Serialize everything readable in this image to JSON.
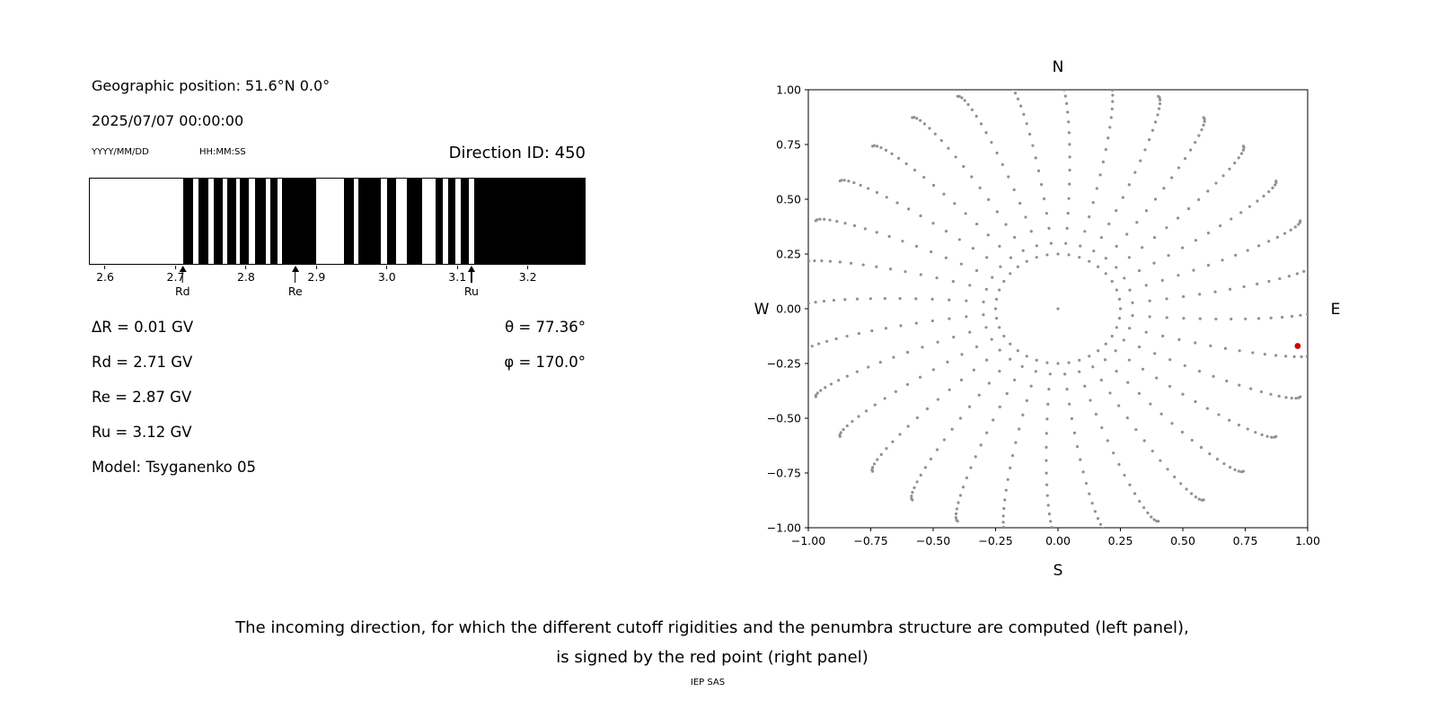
{
  "page": {
    "background": "#ffffff"
  },
  "left_panel": {
    "geographic_position": "Geographic position: 51.6°N 0.0°",
    "datetime": "2025/07/07 00:00:00",
    "date_format_hint": "YYYY/MM/DD",
    "time_format_hint": "HH:MM:SS",
    "direction_id": "Direction ID: 450",
    "values": [
      "ΔR = 0.01 GV",
      "Rd = 2.71 GV",
      "Re = 2.87 GV",
      "Ru = 3.12 GV",
      "Model: Tsyganenko 05"
    ],
    "angles": [
      "θ = 77.36°",
      "φ = 170.0°"
    ]
  },
  "caption": {
    "line1": "The incoming direction, for which the different cutoff rigidities and the penumbra structure are computed (left panel),",
    "line2": "is signed by the red point (right panel)",
    "credit": "IEP SAS"
  },
  "chart_data": [
    {
      "type": "bar",
      "name": "penumbra-structure",
      "title": "",
      "xlabel": "",
      "xlim": [
        2.577,
        3.282
      ],
      "xticks": [
        2.6,
        2.7,
        2.8,
        2.9,
        3.0,
        3.1,
        3.2
      ],
      "xtick_labels": [
        "2.6",
        "2.7",
        "2.8",
        "2.9",
        "3.0",
        "3.1",
        "3.2"
      ],
      "bar_color": "#000000",
      "black_bands_gv": [
        [
          2.71,
          2.724
        ],
        [
          2.732,
          2.746
        ],
        [
          2.753,
          2.766
        ],
        [
          2.773,
          2.785
        ],
        [
          2.791,
          2.804
        ],
        [
          2.813,
          2.828
        ],
        [
          2.834,
          2.845
        ],
        [
          2.851,
          2.899
        ],
        [
          2.939,
          2.953
        ],
        [
          2.959,
          2.991
        ],
        [
          3.0,
          3.013
        ],
        [
          3.029,
          3.051
        ],
        [
          3.07,
          3.08
        ],
        [
          3.087,
          3.098
        ],
        [
          3.106,
          3.117
        ],
        [
          3.124,
          3.282
        ]
      ],
      "markers": [
        {
          "label": "Rd",
          "x": 2.71
        },
        {
          "label": "Re",
          "x": 2.87
        },
        {
          "label": "Ru",
          "x": 3.12
        }
      ],
      "values": {
        "delta_R_GV": 0.01,
        "Rd_GV": 2.71,
        "Re_GV": 2.87,
        "Ru_GV": 3.12,
        "theta_deg": 77.36,
        "phi_deg": 170.0,
        "model": "Tsyganenko 05"
      }
    },
    {
      "type": "scatter",
      "name": "incoming-direction-map",
      "xlim": [
        -1,
        1
      ],
      "ylim": [
        -1,
        1
      ],
      "xticks": [
        -1,
        -0.75,
        -0.5,
        -0.25,
        0,
        0.25,
        0.5,
        0.75,
        1
      ],
      "xtick_labels": [
        "−1.00",
        "−0.75",
        "−0.50",
        "−0.25",
        "0.00",
        "0.25",
        "0.50",
        "0.75",
        "1.00"
      ],
      "yticks": [
        1,
        0.75,
        0.5,
        0.25,
        0,
        -0.25,
        -0.5,
        -0.75,
        -1
      ],
      "ytick_labels": [
        "1.00",
        "0.75",
        "0.50",
        "0.25",
        "0.00",
        "−0.25",
        "−0.50",
        "−0.75",
        "−1.00"
      ],
      "compass": {
        "top": "N",
        "bottom": "S",
        "left": "W",
        "right": "E"
      },
      "grid": false,
      "dot_color": "#919191",
      "red_point": {
        "x": 0.96,
        "y": -0.17,
        "color": "#d40000"
      },
      "pattern": {
        "n_spokes": 32,
        "spoke_start_radius": 0.3,
        "spoke_end_radius": 1.05,
        "dots_per_spoke": 18,
        "inner_ring_radius": 0.25,
        "inner_ring_dots": 36,
        "center_dot": true,
        "twist_deg": 6
      }
    }
  ]
}
